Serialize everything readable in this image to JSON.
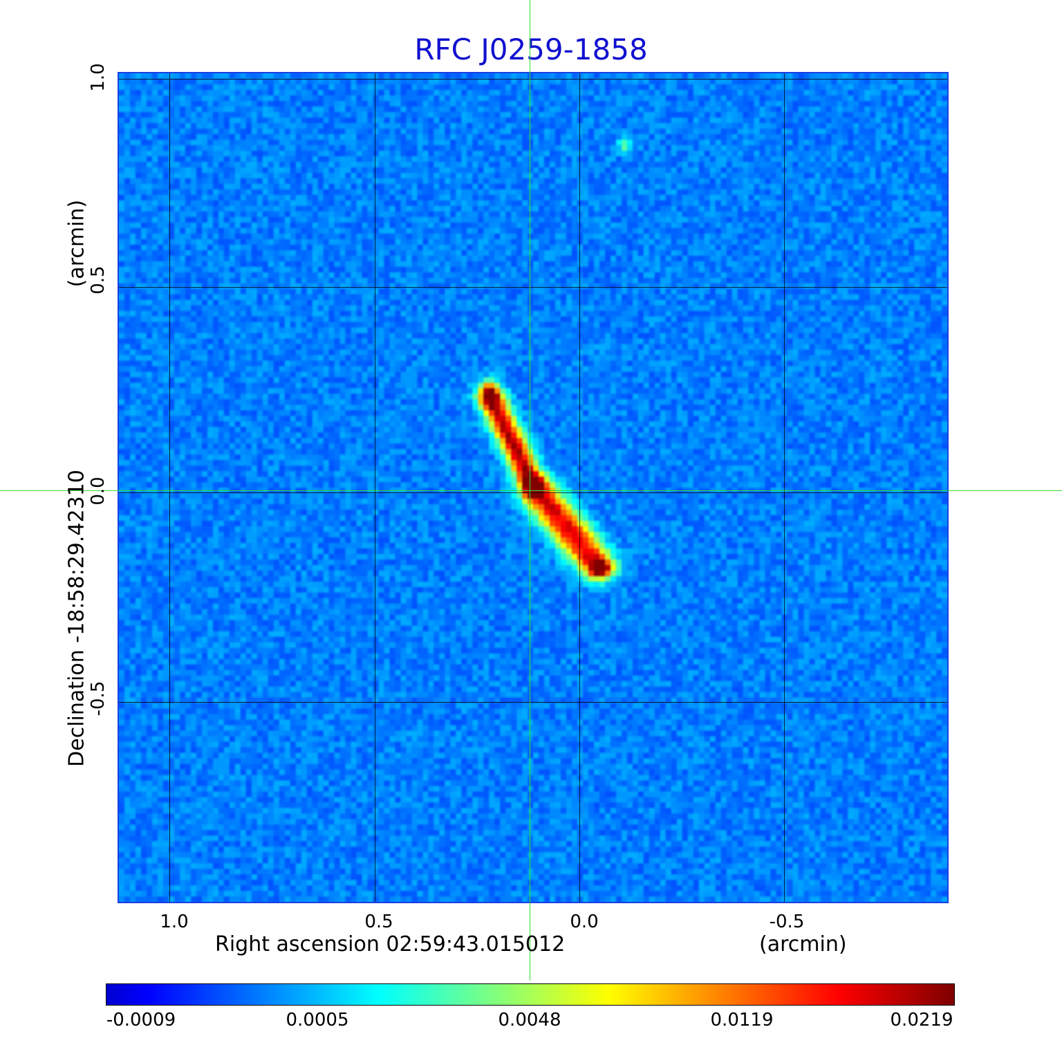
{
  "title": "RFC J0259-1858",
  "axes": {
    "x_ticks": [
      "1.0",
      "0.5",
      "0.0",
      "-0.5"
    ],
    "y_ticks": [
      "1.0",
      "0.5",
      "0.0",
      "-0.5"
    ],
    "x_label": "Right ascension  02:59:43.015012",
    "x_unit": "(arcmin)",
    "y_label": "Declination  -18:58:29.42310",
    "y_unit": "(arcmin)"
  },
  "colorbar": {
    "ticks": [
      "-0.0009",
      "0.0005",
      "0.0048",
      "0.0119",
      "0.0219"
    ]
  },
  "colors": {
    "title": "#1010d0",
    "crosshair": "#33dd33",
    "background_map": "#2e6df5"
  }
}
